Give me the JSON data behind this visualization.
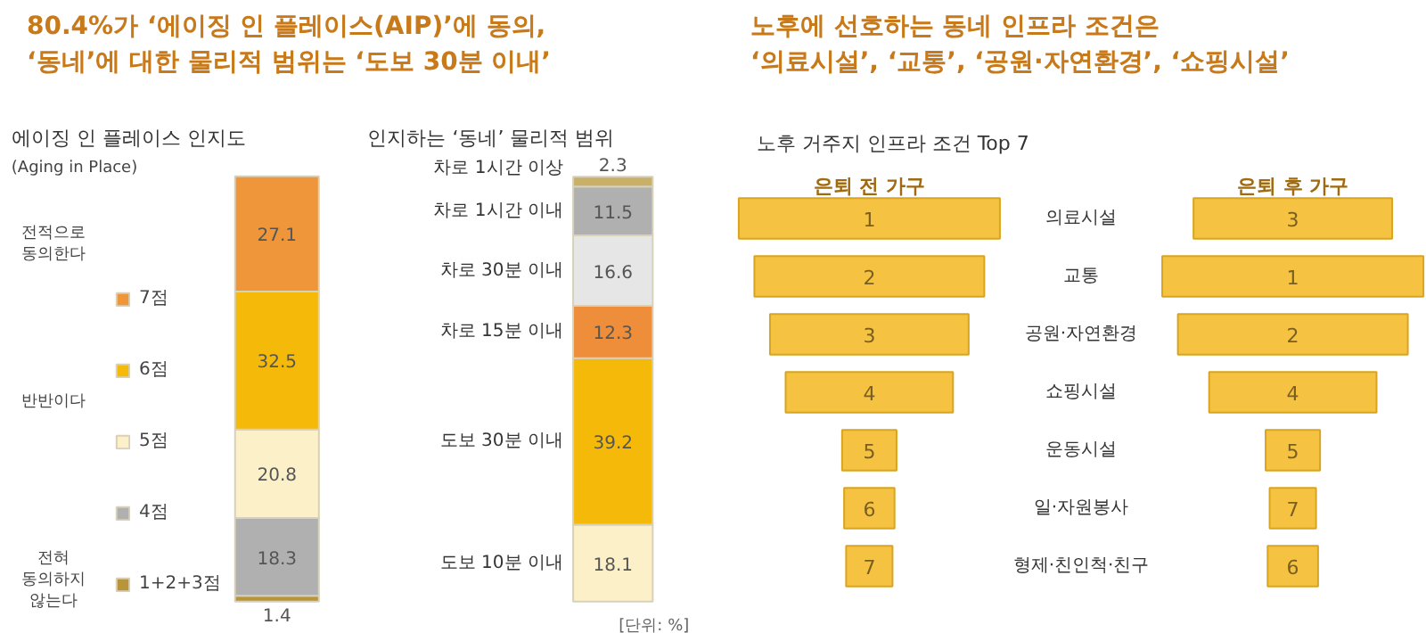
{
  "chart_data": [
    {
      "type": "bar",
      "stacked": true,
      "title": "80.4%가 ‘에이징 인 플레이스(AIP)’에 동의,\n‘동네’에 대한 물리적 범위는 ‘도보 30분 이내’",
      "subtitle": "에이징 인 플레이스 인지도",
      "categories": [
        null
      ],
      "tick_labels": false,
      "data_labels": true,
      "legend": "left",
      "annotations": [
        "(Aging in Place)",
        "전적으로\n동의한다",
        "반반이다",
        "전혀\n동의하지\n않는다"
      ],
      "series": [
        {
          "name": "1+2+3점",
          "color": "#b8953a",
          "values": [
            1.4
          ]
        },
        {
          "name": "4점",
          "color": "#b0b0b0",
          "values": [
            18.3
          ]
        },
        {
          "name": "5점",
          "color": "#fbf0c8",
          "values": [
            20.8
          ]
        },
        {
          "name": "6점",
          "color": "#f5b90a",
          "values": [
            32.5
          ]
        },
        {
          "name": "7점",
          "color": "#f0963a",
          "values": [
            27.1
          ]
        }
      ]
    },
    {
      "type": "bar",
      "stacked": true,
      "subtitle": "인지하는 ‘동네’ 물리적 범위",
      "categories": [
        null
      ],
      "tick_labels": false,
      "data_labels": true,
      "annotations": [
        "[단위: %]"
      ],
      "series": [
        {
          "name": "도보 10분 이내",
          "color": "#fbf0c8",
          "values": [
            18.1
          ]
        },
        {
          "name": "도보 30분 이내",
          "color": "#f5b90a",
          "values": [
            39.2
          ]
        },
        {
          "name": "차로 15분 이내",
          "color": "#ee8e3a",
          "values": [
            12.3
          ]
        },
        {
          "name": "차로 30분 이내",
          "color": "#e6e6e6",
          "values": [
            16.6
          ]
        },
        {
          "name": "차로 1시간 이내",
          "color": "#b0b0b0",
          "values": [
            11.5
          ]
        },
        {
          "name": "차로 1시간 이상",
          "color": "#c8b068",
          "values": [
            2.3
          ]
        }
      ]
    },
    {
      "type": "other",
      "title": "노후에 선호하는 동네 인프라 조건은\n‘의료시설’, ‘교통’, ‘공원·자연환경’, ‘쇼핑시설’",
      "subtitle": "노후 거주지 인프라 조건 Top 7",
      "data_labels": true,
      "categories": [
        "의료시설",
        "교통",
        "공원·자연환경",
        "쇼핑시설",
        "운동시설",
        "일·자원봉사",
        "형제·친인척·친구"
      ],
      "series": [
        {
          "name": "은퇴 전 가구",
          "color": "#f5c242",
          "values": [
            1,
            2,
            3,
            4,
            5,
            6,
            7
          ]
        },
        {
          "name": "은퇴 후 가구",
          "color": "#f5c242",
          "values": [
            3,
            1,
            2,
            4,
            5,
            7,
            6
          ]
        }
      ]
    }
  ]
}
